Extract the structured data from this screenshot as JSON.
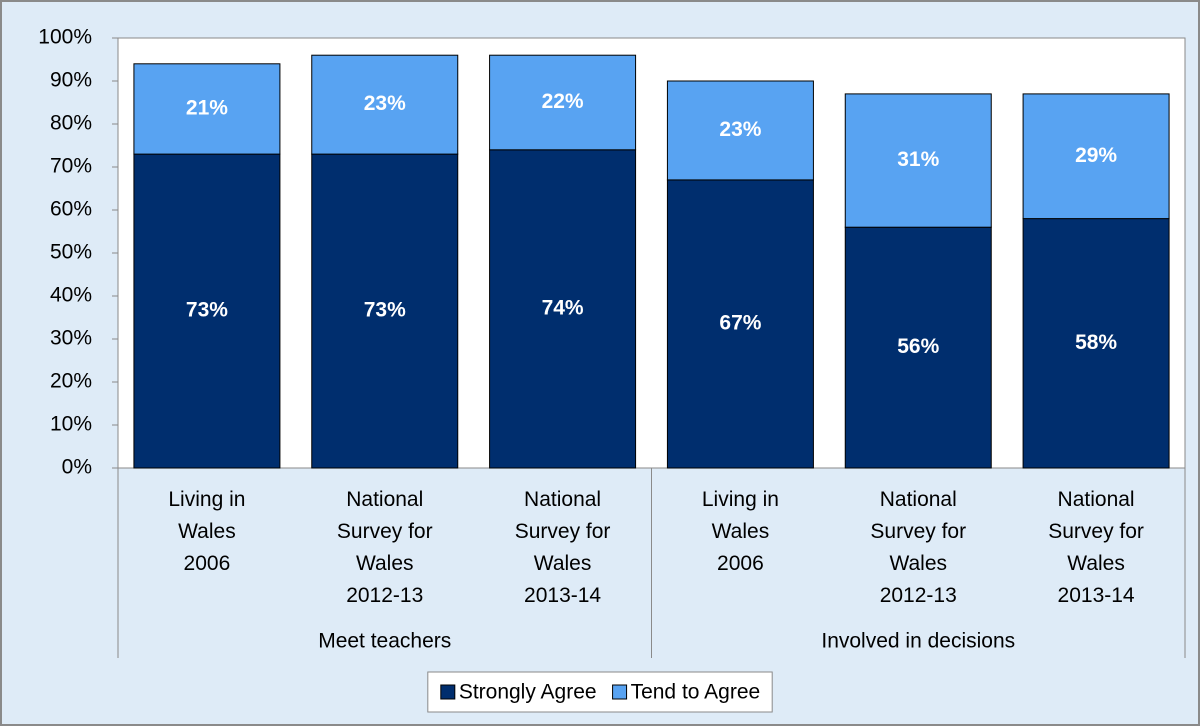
{
  "chart_data": {
    "type": "stacked-bar",
    "groups": [
      {
        "label": "Meet teachers",
        "categories": [
          [
            "Living in",
            "Wales",
            "2006"
          ],
          [
            "National",
            "Survey for",
            "Wales",
            "2012-13"
          ],
          [
            "National",
            "Survey for",
            "Wales",
            "2013-14"
          ]
        ]
      },
      {
        "label": "Involved in decisions",
        "categories": [
          [
            "Living in",
            "Wales",
            "2006"
          ],
          [
            "National",
            "Survey for",
            "Wales",
            "2012-13"
          ],
          [
            "National",
            "Survey for",
            "Wales",
            "2013-14"
          ]
        ]
      }
    ],
    "series": [
      {
        "name": "Strongly Agree",
        "color": "#002e6e",
        "values": [
          73,
          73,
          74,
          67,
          56,
          58
        ],
        "value_labels": [
          "73%",
          "73%",
          "74%",
          "67%",
          "56%",
          "58%"
        ]
      },
      {
        "name": "Tend to Agree",
        "color": "#58a3f2",
        "values": [
          21,
          23,
          22,
          23,
          31,
          29
        ],
        "value_labels": [
          "21%",
          "23%",
          "22%",
          "23%",
          "31%",
          "29%"
        ]
      }
    ],
    "ylim": [
      0,
      100
    ],
    "yticks": [
      {
        "value": 0,
        "label": "0%"
      },
      {
        "value": 10,
        "label": "10%"
      },
      {
        "value": 20,
        "label": "20%"
      },
      {
        "value": 30,
        "label": "30%"
      },
      {
        "value": 40,
        "label": "40%"
      },
      {
        "value": 50,
        "label": "50%"
      },
      {
        "value": 60,
        "label": "60%"
      },
      {
        "value": 70,
        "label": "70%"
      },
      {
        "value": 80,
        "label": "80%"
      },
      {
        "value": 90,
        "label": "90%"
      },
      {
        "value": 100,
        "label": "100%"
      }
    ],
    "legend": "bottom"
  }
}
